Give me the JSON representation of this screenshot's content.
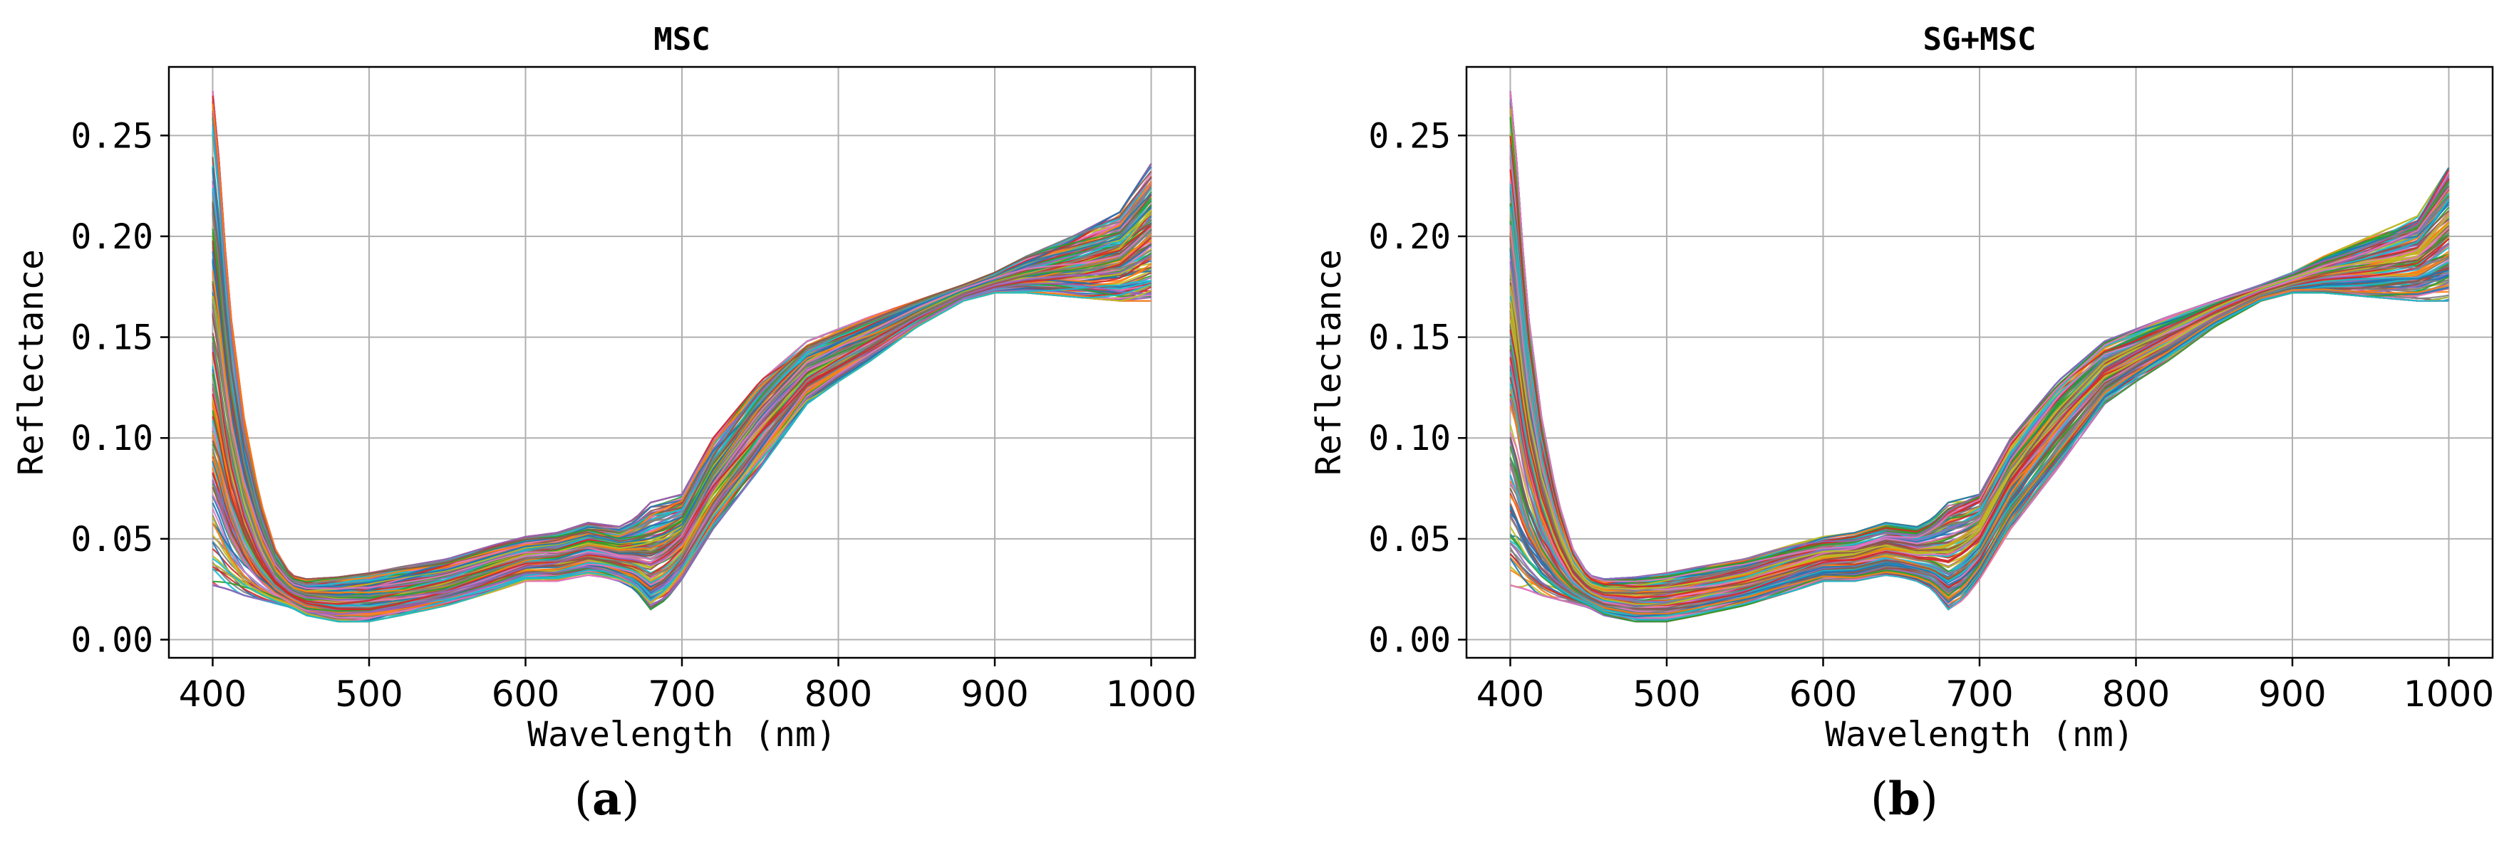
{
  "chart_data": [
    {
      "type": "line",
      "panel_label": "a",
      "title": "MSC",
      "xlabel": "Wavelength (nm)",
      "ylabel": "Reflectance",
      "xlim": [
        372,
        1028
      ],
      "ylim": [
        -0.009,
        0.284
      ],
      "xticks": [
        "400",
        "500",
        "600",
        "700",
        "800",
        "900",
        "1000"
      ],
      "yticks": [
        "0.00",
        "0.05",
        "0.10",
        "0.15",
        "0.20",
        "0.25"
      ],
      "grid": true,
      "legend": "none",
      "spectra_count": 160,
      "wavelength": [
        400,
        405,
        410,
        420,
        430,
        440,
        450,
        460,
        480,
        500,
        520,
        550,
        580,
        600,
        620,
        640,
        650,
        660,
        670,
        680,
        690,
        700,
        720,
        750,
        780,
        800,
        820,
        850,
        880,
        900,
        920,
        950,
        980,
        1000
      ],
      "series": [
        {
          "role": "upper envelope",
          "values": [
            0.272,
            0.23,
            0.17,
            0.11,
            0.07,
            0.045,
            0.032,
            0.03,
            0.031,
            0.033,
            0.036,
            0.04,
            0.047,
            0.051,
            0.053,
            0.058,
            0.057,
            0.056,
            0.06,
            0.068,
            0.07,
            0.072,
            0.1,
            0.128,
            0.148,
            0.154,
            0.16,
            0.168,
            0.176,
            0.182,
            0.19,
            0.2,
            0.212,
            0.236
          ]
        },
        {
          "role": "lower envelope",
          "values": [
            0.027,
            0.026,
            0.025,
            0.022,
            0.02,
            0.018,
            0.016,
            0.012,
            0.009,
            0.009,
            0.012,
            0.017,
            0.024,
            0.029,
            0.029,
            0.032,
            0.031,
            0.029,
            0.025,
            0.015,
            0.02,
            0.03,
            0.055,
            0.085,
            0.117,
            0.128,
            0.138,
            0.155,
            0.168,
            0.172,
            0.172,
            0.17,
            0.168,
            0.168
          ]
        }
      ]
    },
    {
      "type": "line",
      "panel_label": "b",
      "title": "SG+MSC",
      "xlabel": "Wavelength (nm)",
      "ylabel": "Reflectance",
      "xlim": [
        372,
        1028
      ],
      "ylim": [
        -0.009,
        0.284
      ],
      "xticks": [
        "400",
        "500",
        "600",
        "700",
        "800",
        "900",
        "1000"
      ],
      "yticks": [
        "0.00",
        "0.05",
        "0.10",
        "0.15",
        "0.20",
        "0.25"
      ],
      "grid": true,
      "legend": "none",
      "spectra_count": 160,
      "wavelength": [
        400,
        405,
        410,
        420,
        430,
        440,
        450,
        460,
        480,
        500,
        520,
        550,
        580,
        600,
        620,
        640,
        650,
        660,
        670,
        680,
        690,
        700,
        720,
        750,
        780,
        800,
        820,
        850,
        880,
        900,
        920,
        950,
        980,
        1000
      ],
      "series": [
        {
          "role": "upper envelope",
          "values": [
            0.272,
            0.23,
            0.17,
            0.11,
            0.07,
            0.045,
            0.032,
            0.03,
            0.031,
            0.033,
            0.036,
            0.04,
            0.047,
            0.051,
            0.053,
            0.058,
            0.057,
            0.056,
            0.06,
            0.068,
            0.07,
            0.072,
            0.1,
            0.128,
            0.148,
            0.154,
            0.16,
            0.168,
            0.176,
            0.182,
            0.19,
            0.2,
            0.21,
            0.234
          ]
        },
        {
          "role": "lower envelope",
          "values": [
            0.027,
            0.026,
            0.025,
            0.022,
            0.02,
            0.018,
            0.016,
            0.012,
            0.009,
            0.009,
            0.012,
            0.017,
            0.024,
            0.029,
            0.029,
            0.032,
            0.031,
            0.029,
            0.025,
            0.015,
            0.02,
            0.03,
            0.055,
            0.085,
            0.117,
            0.128,
            0.138,
            0.155,
            0.168,
            0.172,
            0.172,
            0.17,
            0.168,
            0.168
          ]
        }
      ]
    }
  ],
  "series_palette": [
    "#1f77b4",
    "#ff7f0e",
    "#2ca02c",
    "#d62728",
    "#9467bd",
    "#8c564b",
    "#e377c2",
    "#7f7f7f",
    "#bcbd22",
    "#17becf"
  ]
}
